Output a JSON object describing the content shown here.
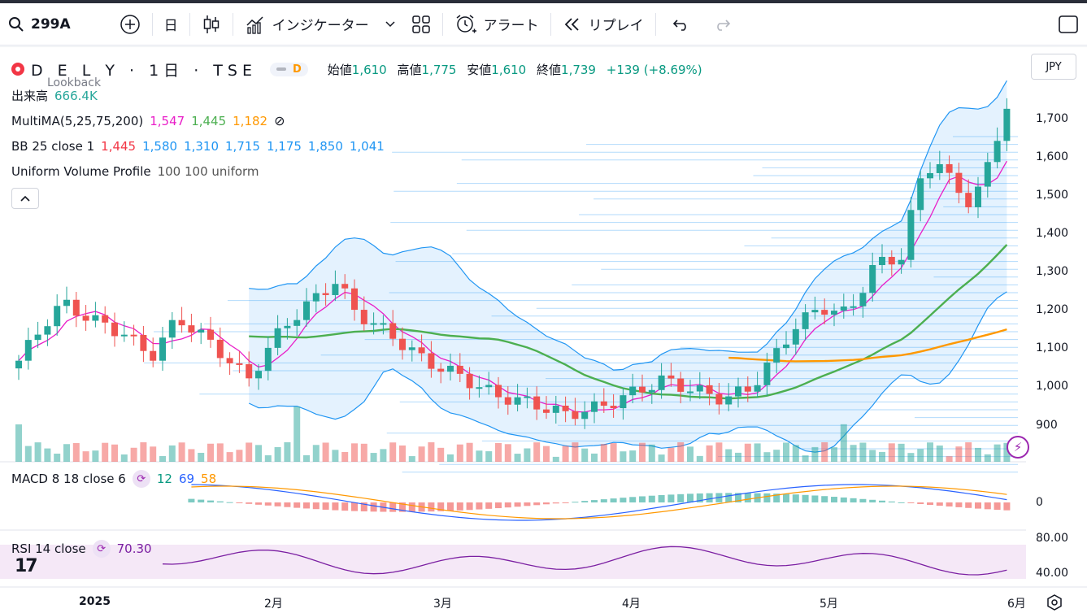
{
  "toolbar": {
    "symbol": "299A",
    "interval": "日",
    "indicators_label": "インジケーター",
    "alert_label": "アラート",
    "replay_label": "リプレイ"
  },
  "legend": {
    "symbol_name": "D E L Y",
    "interval": "1日",
    "exchange": "TSE",
    "delay_badge": "D",
    "ohlc": {
      "open_label": "始値",
      "open": "1,610",
      "high_label": "高値",
      "high": "1,775",
      "low_label": "安値",
      "low": "1,610",
      "close_label": "終値",
      "close": "1,739",
      "change": "+139 (+8.69%)"
    },
    "lookback": "Lookback",
    "volume_label": "出来高",
    "volume_value": "666.4K",
    "multima": {
      "name": "MultiMA(5,25,75,200)",
      "v1": "1,547",
      "v2": "1,445",
      "v3": "1,182"
    },
    "bb": {
      "name": "BB 25 close 1",
      "values": [
        "1,445",
        "1,580",
        "1,310",
        "1,715",
        "1,175",
        "1,850",
        "1,041"
      ]
    },
    "uvp": {
      "name": "Uniform Volume Profile",
      "params": "100 100 uniform"
    }
  },
  "currency": "JPY",
  "price_axis": [
    "1,700",
    "1,600",
    "1,500",
    "1,400",
    "1,300",
    "1,200",
    "1,100",
    "1,000",
    "900"
  ],
  "macd": {
    "name": "MACD 8 18 close 6",
    "v1": "12",
    "v2": "69",
    "v3": "58",
    "axis_zero": "0"
  },
  "rsi": {
    "name": "RSI 14 close",
    "value": "70.30",
    "axis_top": "80.00",
    "axis_bottom": "40.00"
  },
  "x_axis": [
    "2025",
    "2月",
    "3月",
    "4月",
    "5月",
    "6月"
  ],
  "colors": {
    "up": "#26a69a",
    "down": "#ef5350",
    "ma5": "#e91ec8",
    "ma25": "#4caf50",
    "ma75": "#ff9800",
    "bb": "#2196f3",
    "macd": "#2962ff",
    "signal": "#ff9800",
    "rsi": "#7b1fa2"
  }
}
